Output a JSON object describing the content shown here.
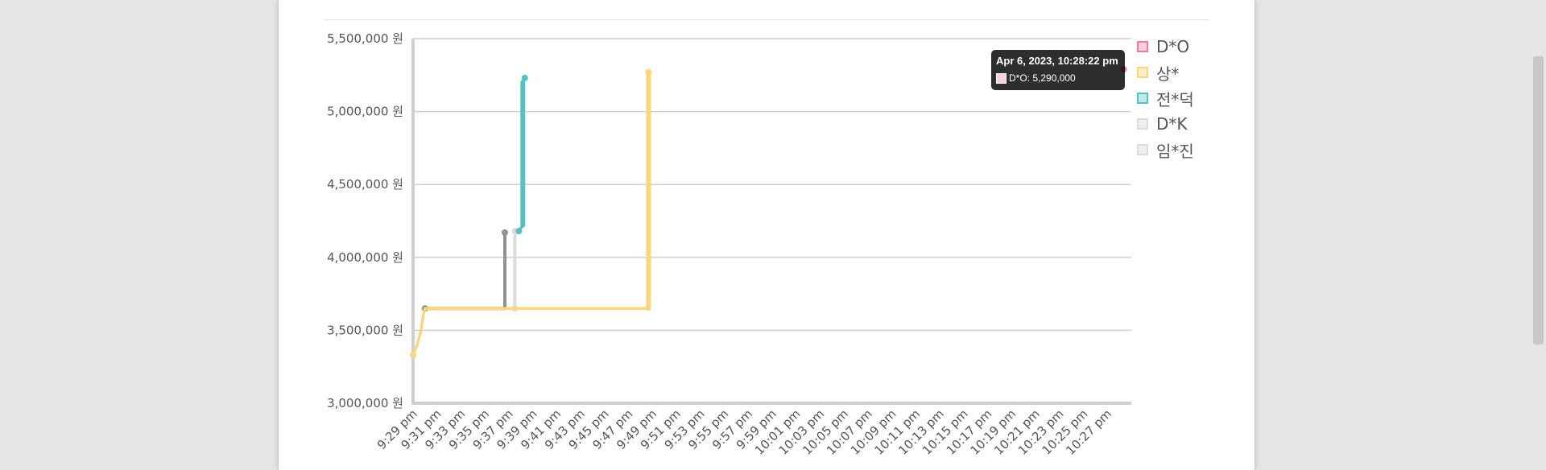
{
  "chart_data": {
    "type": "line",
    "y_ticks": [
      "5,500,000 원",
      "5,000,000 원",
      "4,500,000 원",
      "4,000,000 원",
      "3,500,000 원",
      "3,000,000 원"
    ],
    "ylim": [
      3000000,
      5500000
    ],
    "y_unit": "원",
    "x_ticks": [
      "9:29 pm",
      "9:31 pm",
      "9:33 pm",
      "9:35 pm",
      "9:37 pm",
      "9:39 pm",
      "9:41 pm",
      "9:43 pm",
      "9:45 pm",
      "9:47 pm",
      "9:49 pm",
      "9:51 pm",
      "9:53 pm",
      "9:55 pm",
      "9:57 pm",
      "9:59 pm",
      "10:01 pm",
      "10:03 pm",
      "10:05 pm",
      "10:07 pm",
      "10:09 pm",
      "10:11 pm",
      "10:13 pm",
      "10:15 pm",
      "10:17 pm",
      "10:19 pm",
      "10:21 pm",
      "10:23 pm",
      "10:25 pm",
      "10:27 pm"
    ],
    "x_range": [
      "9:29 pm",
      "10:29 pm"
    ],
    "grid": true,
    "legend_position": "right",
    "series": [
      {
        "name": "D*O",
        "color": "#f07c97",
        "fill": "#fbd0da",
        "visible": true,
        "points": [
          {
            "x": "10:28:22 pm",
            "y": 5290000
          }
        ]
      },
      {
        "name": "상*",
        "color": "#fcd77a",
        "fill": "#fdf0c8",
        "visible": true,
        "points": [
          {
            "x": "9:29:00 pm",
            "y": 3330000
          },
          {
            "x": "9:29:20 pm",
            "y": 3400000
          },
          {
            "x": "9:29:40 pm",
            "y": 3500000
          },
          {
            "x": "9:29:50 pm",
            "y": 3600000
          },
          {
            "x": "9:30:00 pm",
            "y": 3650000
          },
          {
            "x": "9:48:40 pm",
            "y": 3650000
          },
          {
            "x": "9:48:40 pm",
            "y": 5270000
          }
        ]
      },
      {
        "name": "전*덕",
        "color": "#52c2c2",
        "fill": "#c2e9e9",
        "visible": true,
        "points": [
          {
            "x": "9:37:50 pm",
            "y": 4180000
          },
          {
            "x": "9:38:10 pm",
            "y": 4220000
          },
          {
            "x": "9:38:10 pm",
            "y": 5200000
          },
          {
            "x": "9:38:20 pm",
            "y": 5230000
          }
        ]
      },
      {
        "name": "D*K",
        "color": "#dcdcdc",
        "fill": "#eeeeee",
        "visible": false,
        "points": [
          {
            "x": "9:37:30 pm",
            "y": 3650000
          },
          {
            "x": "9:37:30 pm",
            "y": 4180000
          }
        ]
      },
      {
        "name": "임*진",
        "color": "#909090",
        "fill": "#eeeeee",
        "visible": false,
        "points": [
          {
            "x": "9:30:00 pm",
            "y": 3650000
          },
          {
            "x": "9:36:40 pm",
            "y": 3650000
          },
          {
            "x": "9:36:40 pm",
            "y": 4170000
          }
        ]
      }
    ],
    "legend_swatches": [
      {
        "name": "D*O",
        "border": "#f07c97",
        "fill": "#fbd0da"
      },
      {
        "name": "상*",
        "border": "#fcd77a",
        "fill": "#fdf0c8"
      },
      {
        "name": "전*덕",
        "border": "#52c2c2",
        "fill": "#c2e9e9"
      },
      {
        "name": "D*K",
        "border": "#dcdcdc",
        "fill": "#eeeeee"
      },
      {
        "name": "임*진",
        "border": "#dcdcdc",
        "fill": "#eeeeee"
      }
    ],
    "tooltip": {
      "title": "Apr 6, 2023, 10:28:22 pm",
      "label": "D*O: 5,290,000",
      "swatch_color": "#fbd0da"
    }
  }
}
